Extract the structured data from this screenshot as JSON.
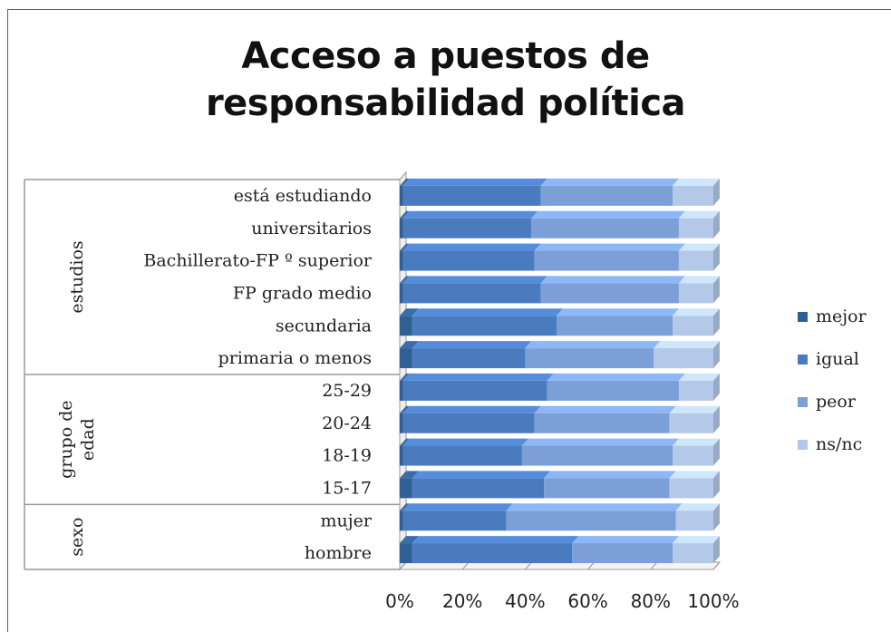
{
  "chart_data": {
    "type": "bar",
    "orientation": "horizontal",
    "stacked": "percent",
    "title_lines": [
      "Acceso a puestos de",
      "responsabilidad política"
    ],
    "categories": [
      {
        "group": "estudios",
        "label": "está estudiando"
      },
      {
        "group": "estudios",
        "label": "universitarios"
      },
      {
        "group": "estudios",
        "label": "Bachillerato-FP º superior"
      },
      {
        "group": "estudios",
        "label": "FP grado medio"
      },
      {
        "group": "estudios",
        "label": "secundaria"
      },
      {
        "group": "estudios",
        "label": "primaria o menos"
      },
      {
        "group": "grupo de edad",
        "label": "25-29"
      },
      {
        "group": "grupo de edad",
        "label": "20-24"
      },
      {
        "group": "grupo de edad",
        "label": "18-19"
      },
      {
        "group": "grupo de edad",
        "label": "15-17"
      },
      {
        "group": "sexo",
        "label": "mujer"
      },
      {
        "group": "sexo",
        "label": "hombre"
      }
    ],
    "groups": [
      {
        "name": "estudios",
        "lines": [
          "estudios"
        ],
        "count": 6
      },
      {
        "name": "grupo de edad",
        "lines": [
          "grupo de",
          "edad"
        ],
        "count": 4
      },
      {
        "name": "sexo",
        "lines": [
          "sexo"
        ],
        "count": 2
      }
    ],
    "series": [
      {
        "name": "mejor",
        "color": "#2f5f94",
        "values": [
          1,
          1,
          1,
          1,
          4,
          4,
          1,
          1,
          1,
          4,
          1,
          4
        ]
      },
      {
        "name": "igual",
        "color": "#4a7bbf",
        "values": [
          44,
          41,
          42,
          44,
          46,
          36,
          46,
          42,
          38,
          42,
          33,
          51
        ]
      },
      {
        "name": "peor",
        "color": "#7b9fd6",
        "values": [
          42,
          47,
          46,
          44,
          37,
          41,
          42,
          43,
          48,
          40,
          54,
          32
        ]
      },
      {
        "name": "ns/nc",
        "color": "#b4c8e8",
        "values": [
          13,
          11,
          11,
          11,
          13,
          19,
          11,
          14,
          13,
          14,
          12,
          13
        ]
      }
    ],
    "xlim": [
      0,
      100
    ],
    "x_ticks": [
      "0%",
      "20%",
      "40%",
      "60%",
      "80%",
      "100%"
    ],
    "legend_position": "right"
  }
}
